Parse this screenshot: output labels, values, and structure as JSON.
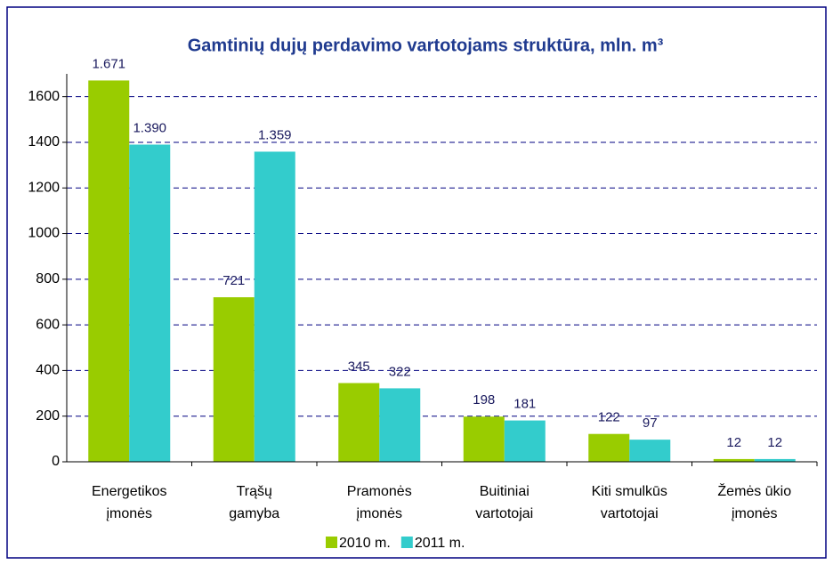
{
  "chart_data": {
    "type": "bar",
    "title": "Gamtinių dujų perdavimo vartotojams struktūra, mln. m³",
    "categories": [
      [
        "Energetikos",
        "įmonės"
      ],
      [
        "Trąšų",
        "gamyba"
      ],
      [
        "Pramonės",
        "įmonės"
      ],
      [
        "Buitiniai",
        "vartotojai"
      ],
      [
        "Kiti smulkūs",
        "vartotojai"
      ],
      [
        "Žemės ūkio",
        "įmonės"
      ]
    ],
    "series": [
      {
        "name": "2010 m.",
        "color": "#99cc00",
        "values": [
          1671,
          721,
          345,
          198,
          122,
          12
        ],
        "value_labels": [
          "1.671",
          "721",
          "345",
          "198",
          "122",
          "12"
        ]
      },
      {
        "name": "2011 m.",
        "color": "#33cccc",
        "values": [
          1390,
          1359,
          322,
          181,
          97,
          12
        ],
        "value_labels": [
          "1.390",
          "1.359",
          "322",
          "181",
          "97",
          "12"
        ]
      }
    ],
    "ylim": [
      0,
      1700
    ],
    "yticks": [
      0,
      200,
      400,
      600,
      800,
      1000,
      1200,
      1400,
      1600
    ],
    "grid": true,
    "legend": "bottom"
  }
}
